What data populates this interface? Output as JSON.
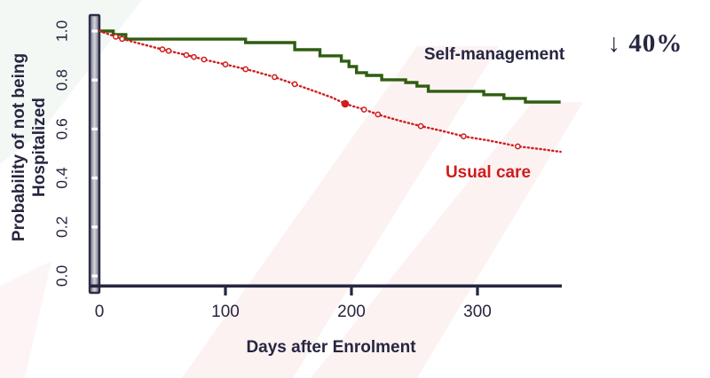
{
  "colors": {
    "text": "#262640",
    "axis": "#262640",
    "self_management_line": "#2f5d11",
    "usual_care_line": "#cf1d1d",
    "axis_bar_edge": "#2e2e48",
    "tick_notch": "#ffffff"
  },
  "chart_data": {
    "type": "line",
    "subtype": "kaplan-meier-survival",
    "title": "",
    "xlabel": "Days after Enrolment",
    "ylabel": "Probability of not being\nHospitalized",
    "xlim": [
      0,
      366
    ],
    "ylim": [
      0.0,
      1.0
    ],
    "x_ticks": [
      0,
      100,
      200,
      300
    ],
    "y_ticks": [
      0.0,
      0.2,
      0.4,
      0.6,
      0.8,
      1.0
    ],
    "y_tick_labels_rotated": true,
    "grid": false,
    "legend_position": "inline-text-annotations",
    "series": [
      {
        "name": "Self-management",
        "line_type": "step",
        "style": "solid",
        "color": "#2f5d11",
        "label_color": "#262640",
        "points": [
          [
            0,
            1.0
          ],
          [
            11,
            0.986
          ],
          [
            21,
            0.967
          ],
          [
            116,
            0.953
          ],
          [
            155,
            0.924
          ],
          [
            175,
            0.899
          ],
          [
            192,
            0.877
          ],
          [
            198,
            0.855
          ],
          [
            204,
            0.83
          ],
          [
            212,
            0.819
          ],
          [
            224,
            0.801
          ],
          [
            243,
            0.79
          ],
          [
            252,
            0.775
          ],
          [
            261,
            0.754
          ],
          [
            305,
            0.74
          ],
          [
            321,
            0.725
          ],
          [
            338,
            0.71
          ],
          [
            366,
            0.71
          ]
        ]
      },
      {
        "name": "Usual care",
        "line_type": "curve",
        "style": "dotted",
        "color": "#cf1d1d",
        "label_color": "#cf1d1d",
        "points": [
          [
            0,
            1.0
          ],
          [
            18,
            0.968
          ],
          [
            34,
            0.946
          ],
          [
            51,
            0.924
          ],
          [
            69,
            0.902
          ],
          [
            86,
            0.88
          ],
          [
            104,
            0.859
          ],
          [
            122,
            0.837
          ],
          [
            139,
            0.812
          ],
          [
            155,
            0.783
          ],
          [
            171,
            0.754
          ],
          [
            185,
            0.728
          ],
          [
            195,
            0.703
          ],
          [
            209,
            0.681
          ],
          [
            223,
            0.656
          ],
          [
            238,
            0.634
          ],
          [
            255,
            0.612
          ],
          [
            273,
            0.591
          ],
          [
            290,
            0.569
          ],
          [
            308,
            0.554
          ],
          [
            322,
            0.54
          ],
          [
            332,
            0.529
          ],
          [
            350,
            0.518
          ],
          [
            366,
            0.507
          ]
        ],
        "censor_mark_days": [
          13,
          18,
          50,
          55,
          69,
          75,
          83,
          100,
          116,
          139,
          155,
          210,
          221,
          255,
          289,
          332
        ],
        "emphasis_marker_day": 195
      }
    ],
    "annotation": {
      "text": "↓ 40%",
      "color": "#262640"
    }
  }
}
